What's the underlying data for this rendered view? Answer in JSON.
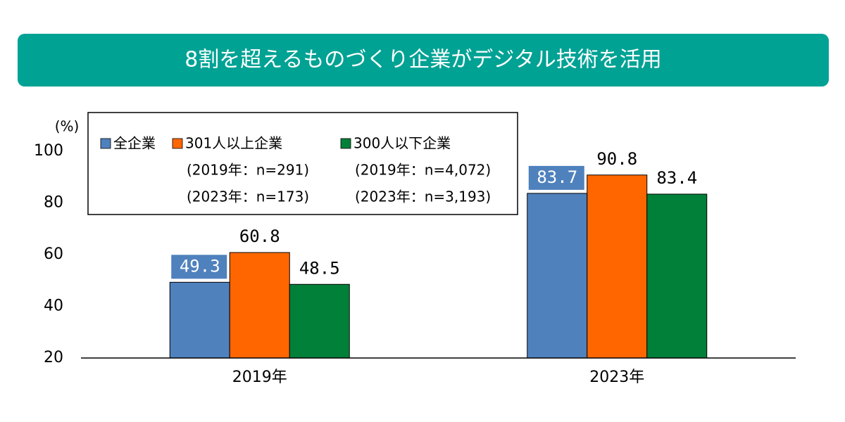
{
  "chart_data": {
    "type": "bar",
    "title": "8割を超えるものづくり企業がデジタル技術を活用",
    "y_unit": "(%)",
    "categories": [
      "2019年",
      "2023年"
    ],
    "series": [
      {
        "name": "全企業",
        "color": "#4f81bd",
        "values": [
          49.3,
          83.7
        ],
        "label_box": true
      },
      {
        "name": "301人以上企業",
        "color": "#ff6600",
        "values": [
          60.8,
          90.8
        ],
        "notes": [
          "(2019年：n=291)",
          "(2023年：n=173)"
        ]
      },
      {
        "name": "300人以下企業",
        "color": "#008039",
        "values": [
          48.5,
          83.4
        ],
        "notes": [
          "(2019年：n=4,072)",
          "(2023年：n=3,193)"
        ]
      }
    ],
    "ylim": [
      20,
      100
    ],
    "yticks": [
      20,
      40,
      60,
      80,
      100
    ],
    "grid": false,
    "legend": "top-left"
  }
}
